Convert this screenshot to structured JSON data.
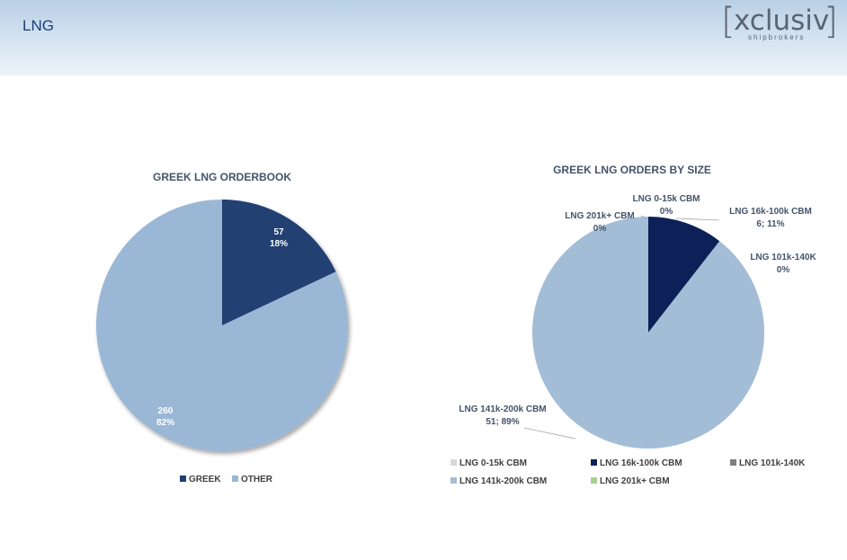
{
  "header": {
    "title": "LNG"
  },
  "logo": {
    "bracket_left": "[",
    "word": "xclusiv",
    "bracket_right": "]",
    "subtitle": "shipbrokers"
  },
  "chart_data": [
    {
      "type": "pie",
      "title": "GREEK LNG ORDERBOOK",
      "categories": [
        "GREEK",
        "OTHER"
      ],
      "values": [
        57,
        260
      ],
      "percents": [
        "18%",
        "82%"
      ],
      "colors": [
        "#203f72",
        "#9ab8d6"
      ],
      "labels": [
        {
          "value": "57",
          "percent": "18%"
        },
        {
          "value": "260",
          "percent": "82%"
        }
      ],
      "legend": {
        "position": "bottom",
        "entries": [
          "GREEK",
          "OTHER"
        ]
      }
    },
    {
      "type": "pie",
      "title": "GREEK LNG ORDERS BY SIZE",
      "categories": [
        "LNG 0-15k CBM",
        "LNG 16k-100k CBM",
        "LNG 101k-140K",
        "LNG 141k-200k CBM",
        "LNG 201k+ CBM"
      ],
      "values": [
        0,
        6,
        0,
        51,
        0
      ],
      "colors": [
        "#d9d9d9",
        "#0d2158",
        "#7f7f7f",
        "#a3bdd7",
        "#a9d18e"
      ],
      "labels": [
        {
          "name": "LNG 0-15k CBM",
          "text": "0%"
        },
        {
          "name": "LNG 16k-100k CBM",
          "text": "6; 11%"
        },
        {
          "name": "LNG 101k-140K",
          "text": "0%"
        },
        {
          "name": "LNG 141k-200k CBM",
          "text": "51; 89%"
        },
        {
          "name": "LNG 201k+ CBM",
          "text": "0%"
        }
      ],
      "legend": {
        "position": "bottom",
        "entries": [
          "LNG 0-15k CBM",
          "LNG 16k-100k CBM",
          "LNG 101k-140K",
          "LNG 141k-200k CBM",
          "LNG 201k+ CBM"
        ]
      }
    }
  ]
}
